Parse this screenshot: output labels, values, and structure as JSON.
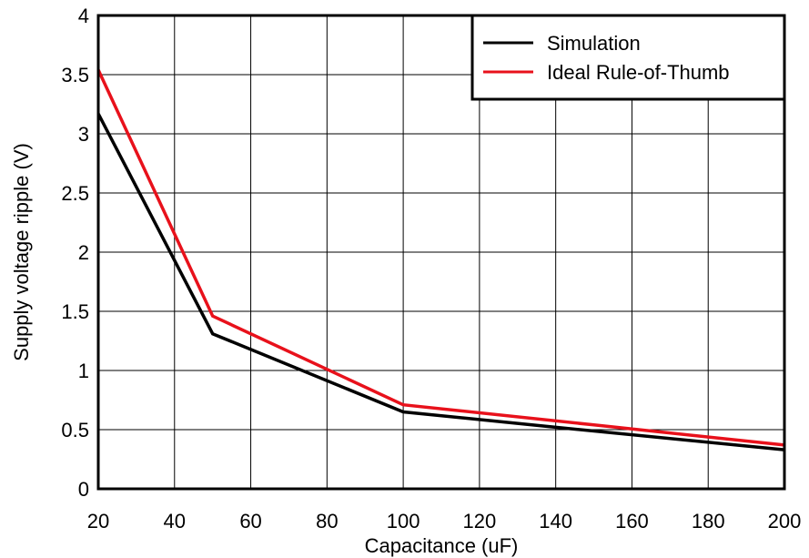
{
  "chart_data": {
    "type": "line",
    "xlabel": "Capacitance (uF)",
    "ylabel": "Supply voltage ripple (V)",
    "xlim": [
      20,
      200
    ],
    "ylim": [
      0,
      4
    ],
    "xticks": [
      "20",
      "40",
      "60",
      "80",
      "100",
      "120",
      "140",
      "160",
      "180",
      "200"
    ],
    "yticks": [
      "0",
      "0.5",
      "1",
      "1.5",
      "2",
      "2.5",
      "3",
      "3.5",
      "4"
    ],
    "grid": true,
    "legend_position": "top-right",
    "series": [
      {
        "name": "Simulation",
        "color": "#000000",
        "x": [
          20,
          50,
          100,
          140,
          200
        ],
        "y": [
          3.17,
          1.31,
          0.65,
          0.52,
          0.33
        ]
      },
      {
        "name": "Ideal Rule-of-Thumb",
        "color": "#e8111b",
        "x": [
          20,
          50,
          100,
          150,
          200
        ],
        "y": [
          3.54,
          1.46,
          0.71,
          0.54,
          0.37
        ]
      }
    ]
  }
}
